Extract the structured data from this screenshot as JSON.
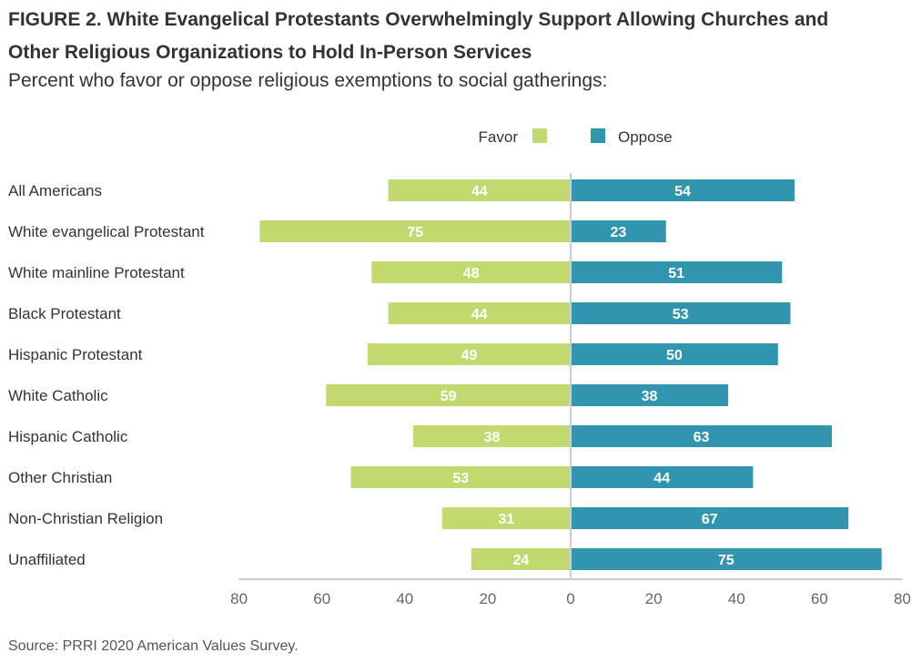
{
  "figure": {
    "title_line1": "FIGURE 2.  White Evangelical Protestants Overwhelmingly Support Allowing Churches and",
    "title_line2": "Other Religious Organizations to Hold In-Person Services",
    "subtitle": "Percent who favor or oppose religious exemptions to social gatherings:",
    "source": "Source: PRRI 2020 American Values Survey."
  },
  "chart_data": {
    "type": "bar",
    "orientation": "horizontal-diverging",
    "categories": [
      "All Americans",
      "White evangelical Protestant",
      "White mainline Protestant",
      "Black Protestant",
      "Hispanic Protestant",
      "White Catholic",
      "Hispanic Catholic",
      "Other Christian",
      "Non-Christian Religion",
      "Unaffiliated"
    ],
    "series": [
      {
        "name": "Favor",
        "color": "#c2d96f",
        "direction": "left",
        "values": [
          44,
          75,
          48,
          44,
          49,
          59,
          38,
          53,
          31,
          24
        ]
      },
      {
        "name": "Oppose",
        "color": "#3295b0",
        "direction": "right",
        "values": [
          54,
          23,
          51,
          53,
          50,
          38,
          63,
          44,
          67,
          75
        ]
      }
    ],
    "xlim": [
      -80,
      80
    ],
    "ticks": [
      -80,
      -60,
      -40,
      -20,
      0,
      20,
      40,
      60,
      80
    ],
    "tick_labels": [
      "80",
      "60",
      "40",
      "20",
      "0",
      "20",
      "40",
      "60",
      "80"
    ],
    "legend_position": "top-center",
    "grid": false
  }
}
